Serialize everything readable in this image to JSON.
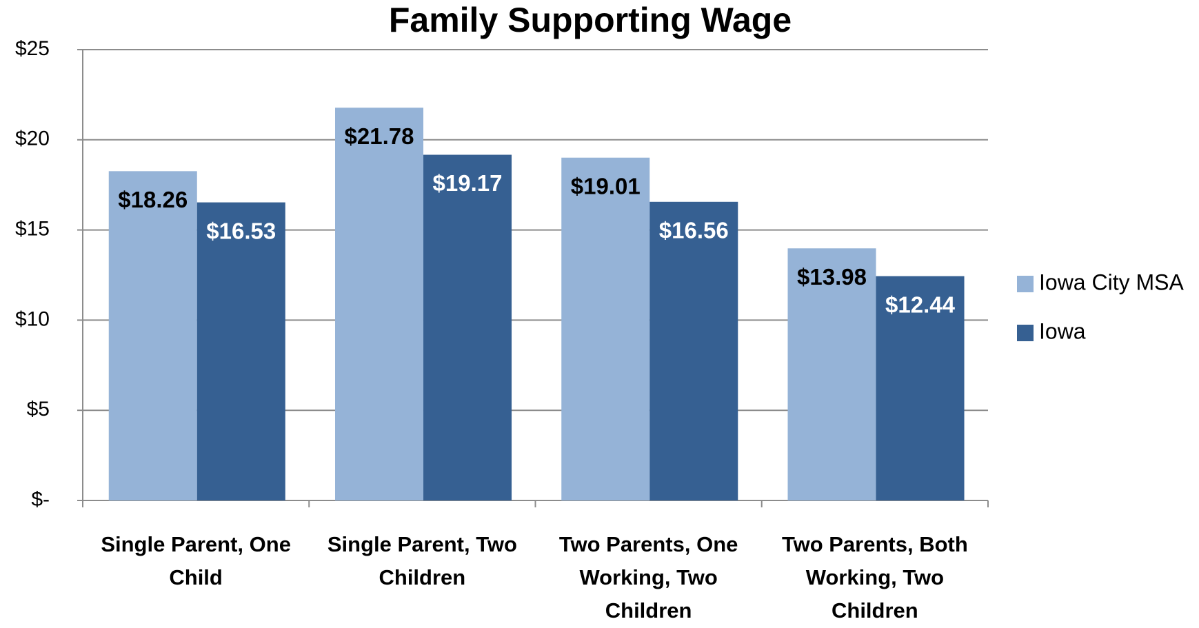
{
  "chart_data": {
    "type": "bar",
    "title": "Family Supporting Wage",
    "categories": [
      "Single Parent, One Child",
      "Single Parent, Two Children",
      "Two Parents, One Working, Two Children",
      "Two Parents, Both Working, Two Children"
    ],
    "series": [
      {
        "name": "Iowa City MSA",
        "color": "#95b3d7",
        "values": [
          18.26,
          21.78,
          19.01,
          13.98
        ],
        "value_labels": [
          "$18.26",
          "$21.78",
          "$19.01",
          "$13.98"
        ]
      },
      {
        "name": "Iowa",
        "color": "#366092",
        "values": [
          16.53,
          19.17,
          16.56,
          12.44
        ],
        "value_labels": [
          "$16.53",
          "$19.17",
          "$16.56",
          "$12.44"
        ]
      }
    ],
    "ylim": [
      0,
      25
    ],
    "yticks": [
      {
        "value": 0,
        "label": "$-"
      },
      {
        "value": 5,
        "label": "$5"
      },
      {
        "value": 10,
        "label": "$10"
      },
      {
        "value": 15,
        "label": "$15"
      },
      {
        "value": 20,
        "label": "$20"
      },
      {
        "value": 25,
        "label": "$25"
      }
    ],
    "grid": true,
    "legend": "right"
  }
}
